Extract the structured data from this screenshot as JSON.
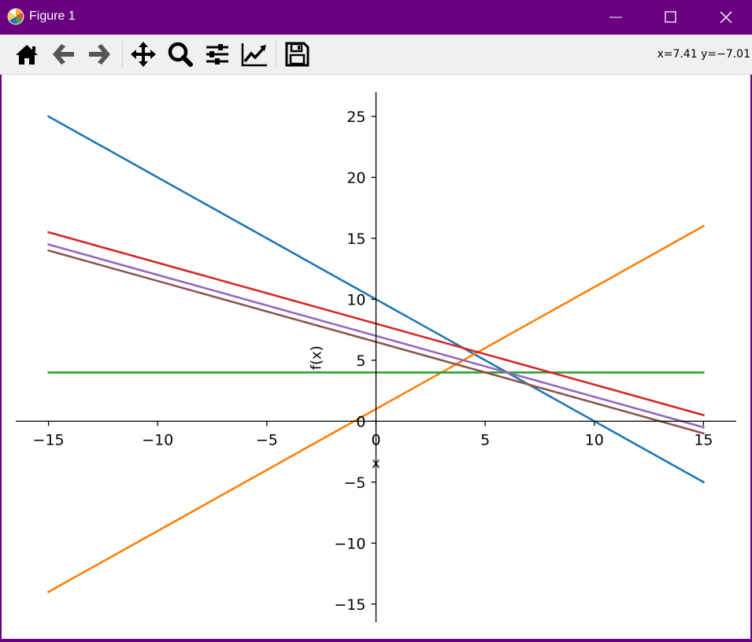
{
  "window": {
    "title": "Figure 1",
    "icons": {
      "app": "matplotlib-logo-icon",
      "minimize": "minimize-icon",
      "maximize": "maximize-icon",
      "close": "close-icon"
    }
  },
  "toolbar": {
    "buttons": [
      {
        "name": "home-icon"
      },
      {
        "name": "back-arrow-icon"
      },
      {
        "name": "forward-arrow-icon"
      },
      {
        "name": "pan-move-icon"
      },
      {
        "name": "zoom-magnifier-icon"
      },
      {
        "name": "configure-subplots-icon"
      },
      {
        "name": "edit-axis-icon"
      },
      {
        "name": "save-floppy-icon"
      }
    ],
    "coord_readout": "x=7.41 y=−7.01"
  },
  "chart_data": {
    "type": "line",
    "title": "",
    "xlabel": "x",
    "ylabel": "f(x)",
    "xlim": [
      -16.5,
      16.5
    ],
    "ylim": [
      -16.5,
      27.0
    ],
    "x_ticks": [
      -15,
      -10,
      -5,
      0,
      5,
      10,
      15
    ],
    "y_ticks": [
      -15,
      -10,
      -5,
      0,
      5,
      10,
      15,
      20,
      25
    ],
    "x_tick_labels": [
      "−15",
      "−10",
      "−5",
      "0",
      "5",
      "10",
      "15"
    ],
    "y_tick_labels": [
      "−15",
      "−10",
      "−5",
      "0",
      "5",
      "10",
      "15",
      "20",
      "25"
    ],
    "grid": false,
    "spines": "centered",
    "series": [
      {
        "color": "#1f77b4",
        "x": [
          -15,
          15
        ],
        "y": [
          25,
          -5
        ]
      },
      {
        "color": "#ff7f0e",
        "x": [
          -15,
          15
        ],
        "y": [
          -14,
          16
        ]
      },
      {
        "color": "#2ca02c",
        "x": [
          -15,
          15
        ],
        "y": [
          4,
          4
        ]
      },
      {
        "color": "#d62728",
        "x": [
          -15,
          15
        ],
        "y": [
          15.5,
          0.5
        ]
      },
      {
        "color": "#9467bd",
        "x": [
          -15,
          15
        ],
        "y": [
          14.5,
          -0.5
        ]
      },
      {
        "color": "#8c564b",
        "x": [
          -15,
          15
        ],
        "y": [
          14,
          -1
        ]
      }
    ]
  }
}
